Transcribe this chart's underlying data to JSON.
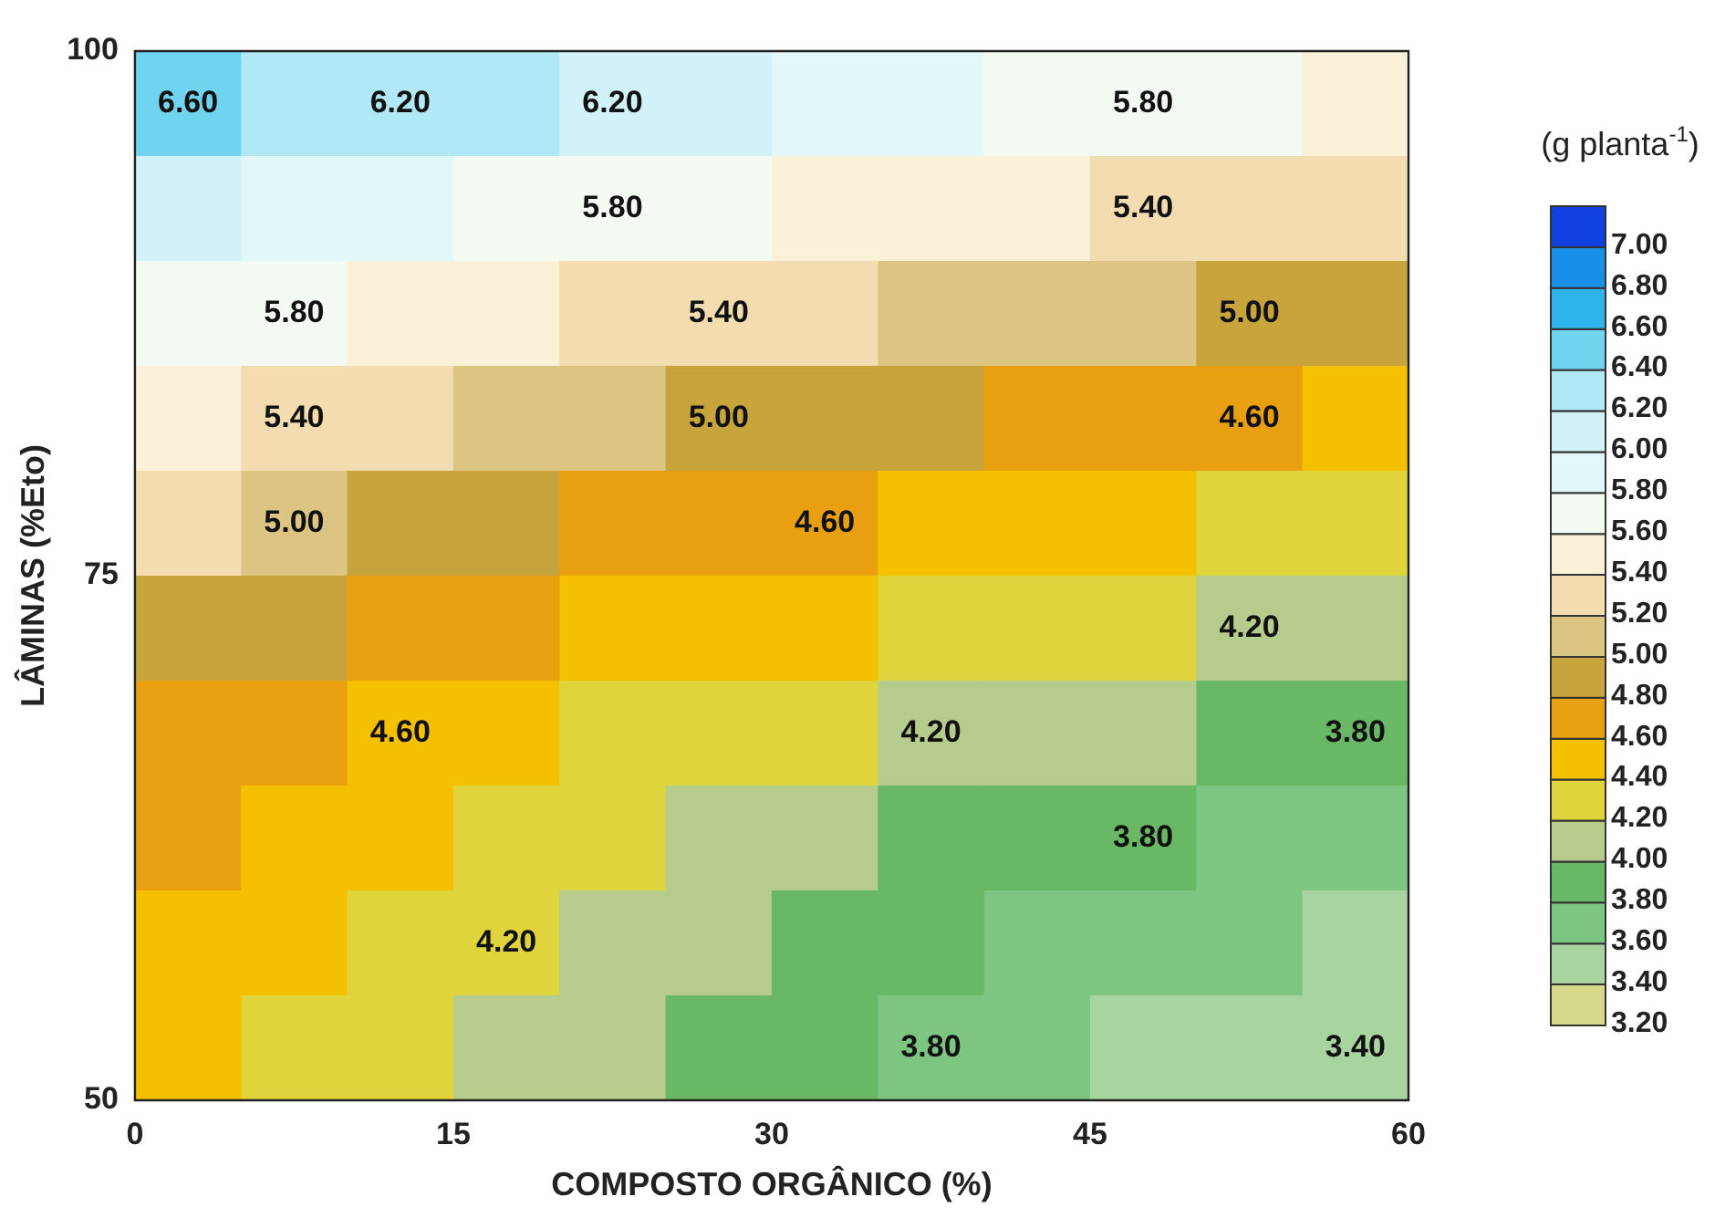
{
  "chart_data": {
    "type": "heatmap",
    "xlabel": "COMPOSTO ORGÂNICO (%)",
    "ylabel": "LÂMINAS (%Eto)",
    "clabel": "(g planta$^{-1}$)",
    "xlim": [
      0,
      60
    ],
    "ylim": [
      50,
      100
    ],
    "xticks": [
      0,
      15,
      30,
      45,
      60
    ],
    "yticks": [
      50,
      75,
      100
    ],
    "clim": [
      3.2,
      7.2
    ],
    "cticks": [
      {
        "value": 3.2,
        "label": "3.20"
      },
      {
        "value": 3.4,
        "label": "3.40"
      },
      {
        "value": 3.6,
        "label": "3.60"
      },
      {
        "value": 3.8,
        "label": "3.80"
      },
      {
        "value": 4.0,
        "label": "4.00"
      },
      {
        "value": 4.2,
        "label": "4.20"
      },
      {
        "value": 4.4,
        "label": "4.40"
      },
      {
        "value": 4.6,
        "label": "4.60"
      },
      {
        "value": 4.8,
        "label": "4.80"
      },
      {
        "value": 5.0,
        "label": "5.00"
      },
      {
        "value": 5.2,
        "label": "5.20"
      },
      {
        "value": 5.4,
        "label": "5.40"
      },
      {
        "value": 5.6,
        "label": "5.60"
      },
      {
        "value": 5.8,
        "label": "5.80"
      },
      {
        "value": 6.0,
        "label": "6.00"
      },
      {
        "value": 6.2,
        "label": "6.20"
      },
      {
        "value": 6.4,
        "label": "6.40"
      },
      {
        "value": 6.6,
        "label": "6.60"
      },
      {
        "value": 6.8,
        "label": "6.80"
      },
      {
        "value": 7.0,
        "label": "7.00"
      }
    ],
    "cells": [
      [
        6.46,
        6.37,
        6.28,
        6.2,
        6.12,
        6.03,
        5.95,
        5.87,
        5.79,
        5.72,
        5.65,
        5.58
      ],
      [
        6.09,
        5.99,
        5.89,
        5.8,
        5.72,
        5.64,
        5.56,
        5.49,
        5.42,
        5.35,
        5.29,
        5.22
      ],
      [
        5.76,
        5.65,
        5.54,
        5.45,
        5.37,
        5.29,
        5.22,
        5.15,
        5.08,
        5.01,
        4.95,
        4.88
      ],
      [
        5.46,
        5.35,
        5.24,
        5.14,
        5.06,
        4.98,
        4.91,
        4.84,
        4.77,
        4.71,
        4.65,
        4.58
      ],
      [
        5.2,
        5.09,
        4.98,
        4.88,
        4.8,
        4.71,
        4.64,
        4.57,
        4.5,
        4.44,
        4.37,
        4.3
      ],
      [
        4.98,
        4.87,
        4.75,
        4.65,
        4.57,
        4.48,
        4.41,
        4.34,
        4.27,
        4.21,
        4.14,
        4.07
      ],
      [
        4.8,
        4.69,
        4.57,
        4.47,
        4.38,
        4.29,
        4.22,
        4.15,
        4.08,
        4.01,
        3.94,
        3.87
      ],
      [
        4.65,
        4.54,
        4.43,
        4.33,
        4.24,
        4.15,
        4.06,
        3.99,
        3.91,
        3.83,
        3.76,
        3.69
      ],
      [
        4.55,
        4.44,
        4.33,
        4.22,
        4.13,
        4.04,
        3.95,
        3.87,
        3.78,
        3.7,
        3.63,
        3.55
      ],
      [
        4.47,
        4.37,
        4.26,
        4.16,
        4.07,
        3.97,
        3.87,
        3.78,
        3.69,
        3.6,
        3.52,
        3.43
      ]
    ],
    "annotations": [
      "6.60",
      "6.20",
      "5.80",
      "6.20",
      "5.40",
      "5.80",
      "5.80",
      "5.00",
      "5.40",
      "5.40",
      "5.00",
      "4.60",
      "4.60",
      "5.00",
      "4.20",
      "4.20",
      "3.80",
      "4.60",
      "3.80",
      "4.20",
      "3.80",
      "3.40"
    ]
  }
}
